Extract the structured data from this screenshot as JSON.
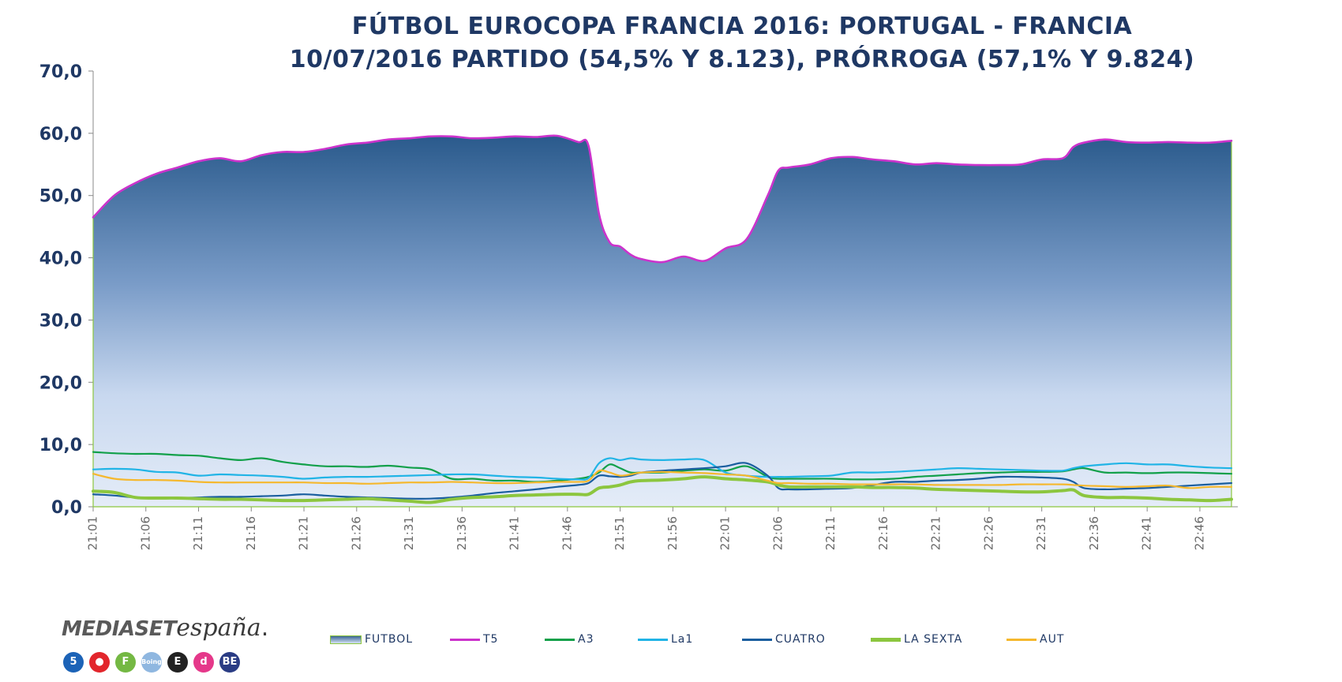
{
  "chart_data": {
    "type": "area",
    "title": "FÚTBOL EUROCOPA FRANCIA 2016: PORTUGAL - FRANCIA",
    "subtitle": "10/07/2016 PARTIDO (54,5% Y 8.123), PRÓRROGA (57,1% Y 9.824)",
    "xlabel": "",
    "ylabel": "",
    "ylim": [
      0,
      70
    ],
    "yticks": [
      "0,0",
      "10,0",
      "20,0",
      "30,0",
      "40,0",
      "50,0",
      "60,0",
      "70,0"
    ],
    "x": [
      "21:01",
      "21:03",
      "21:05",
      "21:07",
      "21:09",
      "21:11",
      "21:13",
      "21:15",
      "21:17",
      "21:19",
      "21:21",
      "21:23",
      "21:25",
      "21:27",
      "21:29",
      "21:31",
      "21:33",
      "21:35",
      "21:37",
      "21:39",
      "21:41",
      "21:43",
      "21:45",
      "21:47",
      "21:48",
      "21:49",
      "21:50",
      "21:51",
      "21:52",
      "21:53",
      "21:55",
      "21:57",
      "21:59",
      "22:01",
      "22:03",
      "22:05",
      "22:06",
      "22:07",
      "22:09",
      "22:11",
      "22:13",
      "22:15",
      "22:17",
      "22:19",
      "22:21",
      "22:23",
      "22:25",
      "22:27",
      "22:29",
      "22:31",
      "22:33",
      "22:34",
      "22:35",
      "22:37",
      "22:39",
      "22:41",
      "22:43",
      "22:45",
      "22:47",
      "22:49"
    ],
    "xticks": [
      "21:01",
      "21:06",
      "21:11",
      "21:16",
      "21:21",
      "21:26",
      "21:31",
      "21:36",
      "21:41",
      "21:46",
      "21:51",
      "21:56",
      "22:01",
      "22:06",
      "22:11",
      "22:16",
      "22:21",
      "22:26",
      "22:31",
      "22:36",
      "22:41",
      "22:46"
    ],
    "series": [
      {
        "name": "FUTBOL",
        "kind": "area",
        "color": "#3a6593",
        "values": [
          46.5,
          50.0,
          52.0,
          53.5,
          54.5,
          55.5,
          56.0,
          55.5,
          56.5,
          57.0,
          57.0,
          57.5,
          58.2,
          58.5,
          59.0,
          59.2,
          59.5,
          59.5,
          59.2,
          59.3,
          59.5,
          59.4,
          59.6,
          58.6,
          58.0,
          47.0,
          42.5,
          41.8,
          40.5,
          39.8,
          39.3,
          40.2,
          39.5,
          41.5,
          43.0,
          50.0,
          54.0,
          54.5,
          55.0,
          56.0,
          56.2,
          55.8,
          55.5,
          55.0,
          55.2,
          55.0,
          54.9,
          54.9,
          55.0,
          55.8,
          56.0,
          57.8,
          58.5,
          59.0,
          58.6,
          58.5,
          58.6,
          58.5,
          58.5,
          58.8
        ]
      },
      {
        "name": "T5",
        "kind": "line",
        "color": "#cc33cc",
        "values": [
          46.5,
          50.0,
          52.0,
          53.5,
          54.5,
          55.5,
          56.0,
          55.5,
          56.5,
          57.0,
          57.0,
          57.5,
          58.2,
          58.5,
          59.0,
          59.2,
          59.5,
          59.5,
          59.2,
          59.3,
          59.5,
          59.4,
          59.6,
          58.6,
          58.0,
          47.0,
          42.5,
          41.8,
          40.5,
          39.8,
          39.3,
          40.2,
          39.5,
          41.5,
          43.0,
          50.0,
          54.0,
          54.5,
          55.0,
          56.0,
          56.2,
          55.8,
          55.5,
          55.0,
          55.2,
          55.0,
          54.9,
          54.9,
          55.0,
          55.8,
          56.0,
          57.8,
          58.5,
          59.0,
          58.6,
          58.5,
          58.6,
          58.5,
          58.5,
          58.8
        ]
      },
      {
        "name": "A3",
        "kind": "line",
        "color": "#12a04a",
        "values": [
          8.8,
          8.6,
          8.5,
          8.5,
          8.3,
          8.2,
          7.8,
          7.5,
          7.8,
          7.2,
          6.8,
          6.5,
          6.5,
          6.4,
          6.6,
          6.3,
          6.0,
          4.5,
          4.5,
          4.2,
          4.2,
          4.0,
          4.2,
          4.5,
          4.8,
          5.5,
          6.8,
          6.2,
          5.5,
          5.5,
          5.5,
          5.8,
          6.0,
          5.8,
          6.5,
          4.8,
          4.5,
          4.5,
          4.5,
          4.5,
          4.4,
          4.4,
          4.5,
          4.8,
          5.0,
          5.2,
          5.4,
          5.5,
          5.6,
          5.6,
          5.7,
          6.0,
          6.2,
          5.5,
          5.5,
          5.4,
          5.5,
          5.5,
          5.4,
          5.3
        ]
      },
      {
        "name": "La1",
        "kind": "line",
        "color": "#21b4e6",
        "values": [
          6.0,
          6.1,
          6.0,
          5.6,
          5.5,
          5.0,
          5.2,
          5.1,
          5.0,
          4.8,
          4.5,
          4.7,
          4.8,
          4.8,
          4.9,
          5.0,
          5.1,
          5.2,
          5.2,
          5.0,
          4.8,
          4.7,
          4.5,
          4.4,
          4.6,
          7.0,
          7.8,
          7.5,
          7.8,
          7.6,
          7.5,
          7.6,
          7.5,
          5.5,
          5.0,
          4.8,
          4.8,
          4.8,
          4.9,
          5.0,
          5.5,
          5.5,
          5.6,
          5.8,
          6.0,
          6.2,
          6.1,
          6.0,
          5.9,
          5.8,
          5.8,
          6.2,
          6.5,
          6.8,
          7.0,
          6.8,
          6.8,
          6.5,
          6.3,
          6.2
        ]
      },
      {
        "name": "CUATRO",
        "kind": "line",
        "color": "#1a5e9f",
        "values": [
          2.0,
          1.8,
          1.5,
          1.4,
          1.4,
          1.5,
          1.6,
          1.6,
          1.7,
          1.8,
          2.0,
          1.8,
          1.6,
          1.5,
          1.4,
          1.3,
          1.3,
          1.5,
          1.8,
          2.2,
          2.5,
          2.8,
          3.2,
          3.5,
          3.8,
          5.0,
          4.9,
          4.8,
          5.0,
          5.5,
          5.8,
          6.0,
          6.2,
          6.5,
          7.0,
          5.0,
          3.0,
          2.8,
          2.8,
          2.9,
          3.0,
          3.5,
          4.0,
          4.0,
          4.2,
          4.3,
          4.5,
          4.8,
          4.8,
          4.7,
          4.5,
          4.0,
          3.0,
          2.8,
          2.9,
          3.0,
          3.2,
          3.4,
          3.6,
          3.8
        ]
      },
      {
        "name": "LA SEXTA",
        "kind": "line",
        "color": "#8cc63f",
        "values": [
          2.5,
          2.3,
          1.5,
          1.4,
          1.4,
          1.3,
          1.2,
          1.2,
          1.1,
          1.0,
          1.0,
          1.1,
          1.2,
          1.3,
          1.1,
          0.9,
          0.7,
          1.2,
          1.5,
          1.6,
          1.8,
          1.9,
          2.0,
          2.0,
          2.0,
          3.0,
          3.2,
          3.5,
          4.0,
          4.2,
          4.3,
          4.5,
          4.8,
          4.5,
          4.3,
          4.0,
          3.5,
          3.2,
          3.2,
          3.2,
          3.2,
          3.1,
          3.1,
          3.0,
          2.8,
          2.7,
          2.6,
          2.5,
          2.4,
          2.4,
          2.6,
          2.7,
          1.8,
          1.5,
          1.5,
          1.4,
          1.2,
          1.1,
          1.0,
          1.2
        ]
      },
      {
        "name": "AUT",
        "kind": "line",
        "color": "#f5b82e",
        "values": [
          5.3,
          4.5,
          4.3,
          4.3,
          4.2,
          4.0,
          3.9,
          3.9,
          3.9,
          3.9,
          3.9,
          3.8,
          3.8,
          3.7,
          3.8,
          3.9,
          3.9,
          4.0,
          3.9,
          3.8,
          3.8,
          3.9,
          4.0,
          4.0,
          4.2,
          5.8,
          5.5,
          5.0,
          5.2,
          5.5,
          5.6,
          5.5,
          5.4,
          5.2,
          5.0,
          4.2,
          3.8,
          3.8,
          3.7,
          3.7,
          3.6,
          3.6,
          3.6,
          3.6,
          3.5,
          3.5,
          3.5,
          3.5,
          3.6,
          3.6,
          3.6,
          3.5,
          3.4,
          3.3,
          3.2,
          3.3,
          3.4,
          3.0,
          3.2,
          3.2
        ]
      }
    ]
  },
  "logo": {
    "brand_bold": "MEDIASET",
    "brand_italic": "españa",
    "channels": [
      {
        "label": "5",
        "color": "#1c63b7"
      },
      {
        "label": "●",
        "color": "#e2262c"
      },
      {
        "label": "F",
        "color": "#74b843"
      },
      {
        "label": "Boing",
        "color": "#8fb7e0"
      },
      {
        "label": "E",
        "color": "#222222"
      },
      {
        "label": "d",
        "color": "#e5388a"
      },
      {
        "label": "BE",
        "color": "#2a3c84"
      }
    ]
  }
}
